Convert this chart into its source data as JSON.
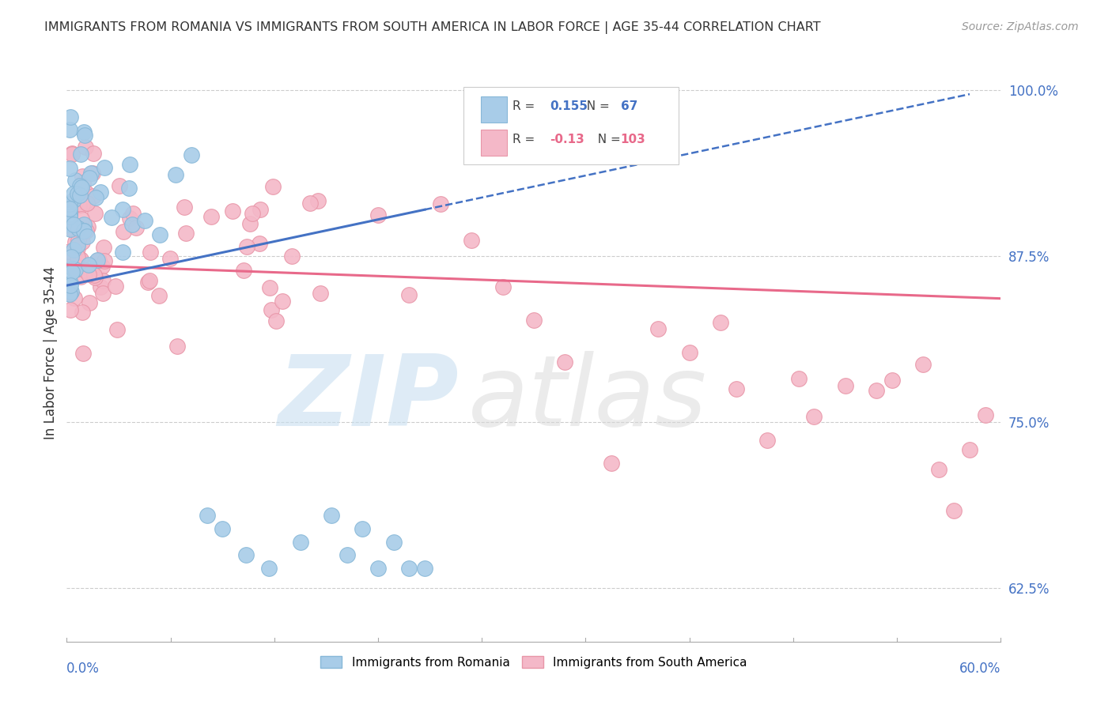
{
  "title": "IMMIGRANTS FROM ROMANIA VS IMMIGRANTS FROM SOUTH AMERICA IN LABOR FORCE | AGE 35-44 CORRELATION CHART",
  "source": "Source: ZipAtlas.com",
  "ylabel": "In Labor Force | Age 35-44",
  "yticks_labels": [
    "100.0%",
    "87.5%",
    "75.0%",
    "62.5%"
  ],
  "ytick_vals": [
    1.0,
    0.875,
    0.75,
    0.625
  ],
  "xlim": [
    0.0,
    0.6
  ],
  "ylim": [
    0.585,
    1.02
  ],
  "romania_color": "#a8cce8",
  "romania_edge": "#88b8d8",
  "south_america_color": "#f4b8c8",
  "south_america_edge": "#e896a8",
  "romania_trend_color": "#4472c4",
  "south_america_trend_color": "#e8698a",
  "romania_R": 0.155,
  "romania_N": 67,
  "south_america_R": -0.13,
  "south_america_N": 103,
  "background_color": "#ffffff",
  "grid_color": "#cccccc",
  "watermark_zip_color": "#c8dff0",
  "watermark_atlas_color": "#d8d8d8"
}
